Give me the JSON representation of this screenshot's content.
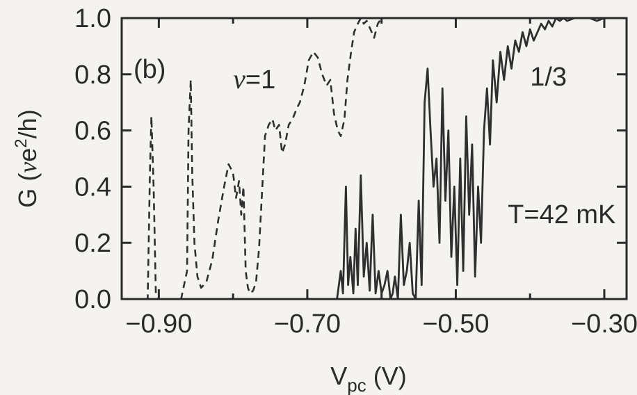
{
  "chart_data": {
    "type": "line",
    "panel_label": "(b)",
    "xlabel": {
      "main": "V",
      "sub": "pc",
      "unit": " (V)"
    },
    "ylabel": {
      "prefix": "G (",
      "nu": "ν",
      "mid": "e",
      "sup": "2",
      "suffix": "/h)"
    },
    "xlim": [
      -0.95,
      -0.27
    ],
    "ylim": [
      0.0,
      1.0
    ],
    "x_ticks": [
      -0.9,
      -0.7,
      -0.5,
      -0.3
    ],
    "x_tick_labels": [
      "−0.90",
      "−0.70",
      "−0.50",
      "−0.30"
    ],
    "x_minor_ticks": [
      -0.8,
      -0.6,
      -0.4
    ],
    "y_ticks": [
      0.0,
      0.2,
      0.4,
      0.6,
      0.8,
      1.0
    ],
    "y_tick_labels": [
      "0.0",
      "0.2",
      "0.4",
      "0.6",
      "0.8",
      "1.0"
    ],
    "grid": false,
    "annotations": [
      {
        "id": "nu1",
        "italic_part": "ν",
        "rest": "=1",
        "x": -0.8,
        "y": 0.75
      },
      {
        "id": "third",
        "italic_part": "",
        "rest": "1/3",
        "x": -0.4,
        "y": 0.76
      },
      {
        "id": "temp",
        "italic_part": "",
        "rest": "T=42 mK",
        "x": -0.43,
        "y": 0.27
      }
    ],
    "series": [
      {
        "style": "dashed",
        "x": [
          -0.95,
          -0.915,
          -0.912,
          -0.91,
          -0.907,
          -0.904,
          -0.9,
          -0.87,
          -0.862,
          -0.86,
          -0.857,
          -0.855,
          -0.852,
          -0.848,
          -0.843,
          -0.836,
          -0.828,
          -0.82,
          -0.812,
          -0.806,
          -0.8,
          -0.796,
          -0.792,
          -0.789,
          -0.786,
          -0.783,
          -0.78,
          -0.777,
          -0.773,
          -0.769,
          -0.765,
          -0.761,
          -0.757,
          -0.752,
          -0.747,
          -0.743,
          -0.738,
          -0.734,
          -0.73,
          -0.725,
          -0.72,
          -0.714,
          -0.71,
          -0.704,
          -0.698,
          -0.692,
          -0.686,
          -0.68,
          -0.674,
          -0.669,
          -0.664,
          -0.659,
          -0.655,
          -0.65,
          -0.646,
          -0.641,
          -0.637,
          -0.632,
          -0.628,
          -0.624,
          -0.62,
          -0.615,
          -0.61,
          -0.605,
          -0.6
        ],
        "y": [
          0.0,
          0.0,
          0.45,
          0.65,
          0.4,
          0.02,
          0.0,
          0.0,
          0.1,
          0.6,
          0.78,
          0.45,
          0.2,
          0.08,
          0.04,
          0.06,
          0.14,
          0.28,
          0.4,
          0.48,
          0.45,
          0.36,
          0.42,
          0.3,
          0.4,
          0.1,
          0.04,
          0.02,
          0.03,
          0.06,
          0.18,
          0.38,
          0.58,
          0.62,
          0.64,
          0.6,
          0.62,
          0.52,
          0.55,
          0.62,
          0.64,
          0.68,
          0.7,
          0.76,
          0.85,
          0.88,
          0.86,
          0.8,
          0.76,
          0.78,
          0.66,
          0.6,
          0.58,
          0.64,
          0.78,
          0.88,
          0.95,
          0.98,
          1.0,
          0.98,
          0.99,
          0.96,
          0.93,
          0.98,
          1.0
        ]
      },
      {
        "style": "solid",
        "x": [
          -0.66,
          -0.655,
          -0.652,
          -0.648,
          -0.645,
          -0.642,
          -0.638,
          -0.635,
          -0.632,
          -0.628,
          -0.624,
          -0.62,
          -0.616,
          -0.612,
          -0.608,
          -0.604,
          -0.6,
          -0.596,
          -0.592,
          -0.588,
          -0.585,
          -0.582,
          -0.578,
          -0.574,
          -0.57,
          -0.566,
          -0.562,
          -0.558,
          -0.554,
          -0.55,
          -0.546,
          -0.542,
          -0.538,
          -0.534,
          -0.53,
          -0.526,
          -0.522,
          -0.518,
          -0.514,
          -0.51,
          -0.506,
          -0.502,
          -0.498,
          -0.494,
          -0.49,
          -0.486,
          -0.482,
          -0.478,
          -0.474,
          -0.47,
          -0.466,
          -0.462,
          -0.458,
          -0.454,
          -0.45,
          -0.445,
          -0.44,
          -0.435,
          -0.43,
          -0.425,
          -0.42,
          -0.415,
          -0.41,
          -0.405,
          -0.4,
          -0.395,
          -0.39,
          -0.385,
          -0.38,
          -0.375,
          -0.37,
          -0.365,
          -0.36,
          -0.355,
          -0.35,
          -0.34,
          -0.33,
          -0.32,
          -0.31,
          -0.3,
          -0.29,
          -0.28,
          -0.27
        ],
        "y": [
          0.0,
          0.1,
          0.02,
          0.4,
          0.05,
          0.15,
          0.02,
          0.25,
          0.05,
          0.44,
          0.08,
          0.2,
          0.03,
          0.3,
          0.02,
          0.1,
          0.02,
          0.05,
          0.1,
          0.0,
          0.02,
          0.08,
          0.0,
          0.3,
          0.05,
          0.1,
          0.2,
          0.02,
          0.0,
          0.35,
          0.05,
          0.7,
          0.82,
          0.6,
          0.4,
          0.5,
          0.2,
          0.75,
          0.35,
          0.6,
          0.15,
          0.4,
          0.05,
          0.5,
          0.1,
          0.65,
          0.3,
          0.55,
          0.08,
          0.4,
          0.2,
          0.6,
          0.75,
          0.55,
          0.85,
          0.7,
          0.88,
          0.78,
          0.9,
          0.82,
          0.92,
          0.88,
          0.95,
          0.9,
          0.96,
          0.92,
          0.95,
          0.98,
          0.96,
          0.99,
          0.97,
          1.0,
          0.99,
          1.0,
          0.99,
          1.0,
          1.0,
          1.0,
          0.99,
          1.0,
          1.0,
          1.0,
          1.0
        ]
      }
    ]
  }
}
